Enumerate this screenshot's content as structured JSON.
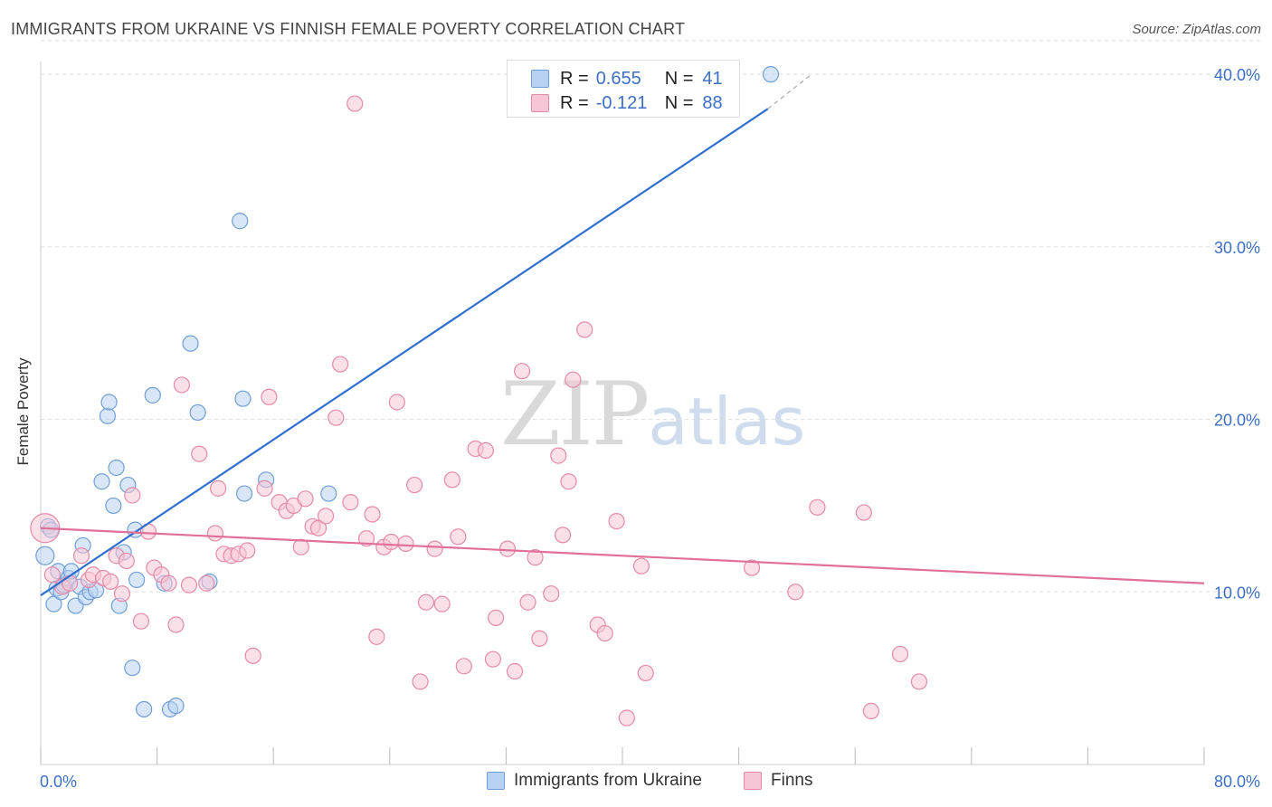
{
  "header": {
    "title": "IMMIGRANTS FROM UKRAINE VS FINNISH FEMALE POVERTY CORRELATION CHART",
    "source": "Source: ZipAtlas.com"
  },
  "watermark": {
    "zip": "ZIP",
    "atlas": "atlas"
  },
  "legend_top": {
    "rows": [
      {
        "r_label": "R =",
        "r_value": "0.655",
        "n_label": "N =",
        "n_value": "41"
      },
      {
        "r_label": "R =",
        "r_value": "-0.121",
        "n_label": "N =",
        "n_value": "88"
      }
    ]
  },
  "legend_bottom": {
    "series1": "Immigrants from Ukraine",
    "series2": "Finns"
  },
  "colors": {
    "blue_fill": "#b8d1f3",
    "blue_stroke": "#6f9fd8",
    "blue_line": "#2f6fd0",
    "pink_fill": "#f7c6d6",
    "pink_stroke": "#e58aa8",
    "pink_line": "#e0709a",
    "grid": "#dddddd",
    "axis_tick": "#3c6fc4"
  },
  "chart_data": {
    "type": "scatter",
    "title": "IMMIGRANTS FROM UKRAINE VS FINNISH FEMALE POVERTY CORRELATION CHART",
    "xlabel": "",
    "ylabel": "Female Poverty",
    "xlim": [
      0,
      80
    ],
    "ylim": [
      0,
      42
    ],
    "x_tick_labels": [
      "0.0%",
      "80.0%"
    ],
    "y_ticks": [
      10,
      20,
      30,
      40
    ],
    "y_tick_labels": [
      "10.0%",
      "20.0%",
      "30.0%",
      "40.0%"
    ],
    "grid": true,
    "legend_position": "top-center",
    "series": [
      {
        "name": "Immigrants from Ukraine",
        "color": "#6f9fd8",
        "r": 0.655,
        "n": 41,
        "trend": {
          "x": [
            0,
            50
          ],
          "y": [
            9.8,
            38.0
          ],
          "dashed_to": [
            53,
            40.0
          ]
        },
        "points": [
          [
            0.3,
            12.1
          ],
          [
            0.5,
            13.8
          ],
          [
            0.7,
            13.6
          ],
          [
            0.9,
            9.3
          ],
          [
            1.1,
            10.2
          ],
          [
            1.2,
            11.2
          ],
          [
            1.4,
            10.0
          ],
          [
            1.6,
            10.4
          ],
          [
            1.9,
            10.8
          ],
          [
            2.1,
            11.2
          ],
          [
            2.4,
            9.2
          ],
          [
            2.7,
            10.3
          ],
          [
            2.9,
            12.7
          ],
          [
            3.1,
            9.7
          ],
          [
            3.4,
            10.0
          ],
          [
            3.8,
            10.1
          ],
          [
            4.2,
            16.4
          ],
          [
            4.6,
            20.2
          ],
          [
            4.7,
            21.0
          ],
          [
            5.0,
            15.0
          ],
          [
            5.2,
            17.2
          ],
          [
            5.4,
            9.2
          ],
          [
            5.7,
            12.3
          ],
          [
            6.0,
            16.2
          ],
          [
            6.3,
            5.6
          ],
          [
            6.5,
            13.6
          ],
          [
            6.6,
            10.7
          ],
          [
            7.1,
            3.2
          ],
          [
            7.7,
            21.4
          ],
          [
            8.5,
            10.5
          ],
          [
            8.9,
            3.2
          ],
          [
            9.3,
            3.4
          ],
          [
            10.3,
            24.4
          ],
          [
            10.8,
            20.4
          ],
          [
            11.6,
            10.6
          ],
          [
            13.7,
            31.5
          ],
          [
            13.9,
            21.2
          ],
          [
            14.0,
            15.7
          ],
          [
            15.5,
            16.5
          ],
          [
            19.8,
            15.7
          ],
          [
            50.2,
            40.0
          ]
        ]
      },
      {
        "name": "Finns",
        "color": "#e58aa8",
        "r": -0.121,
        "n": 88,
        "trend": {
          "x": [
            0,
            80
          ],
          "y": [
            13.7,
            10.5
          ]
        },
        "points": [
          [
            0.3,
            13.7
          ],
          [
            0.8,
            11.0
          ],
          [
            1.5,
            10.3
          ],
          [
            2.0,
            10.5
          ],
          [
            2.8,
            12.1
          ],
          [
            3.3,
            10.7
          ],
          [
            3.6,
            11.0
          ],
          [
            4.3,
            10.8
          ],
          [
            4.8,
            10.6
          ],
          [
            5.2,
            12.1
          ],
          [
            5.6,
            9.9
          ],
          [
            5.9,
            11.8
          ],
          [
            6.3,
            15.6
          ],
          [
            6.9,
            8.3
          ],
          [
            7.4,
            13.5
          ],
          [
            7.8,
            11.4
          ],
          [
            8.3,
            11.0
          ],
          [
            8.8,
            10.5
          ],
          [
            9.3,
            8.1
          ],
          [
            9.7,
            22.0
          ],
          [
            10.2,
            10.4
          ],
          [
            10.9,
            18.0
          ],
          [
            11.4,
            10.5
          ],
          [
            12.0,
            13.4
          ],
          [
            12.2,
            16.0
          ],
          [
            12.6,
            12.2
          ],
          [
            13.1,
            12.1
          ],
          [
            13.6,
            12.2
          ],
          [
            14.2,
            12.4
          ],
          [
            14.6,
            6.3
          ],
          [
            15.4,
            16.0
          ],
          [
            15.7,
            21.3
          ],
          [
            16.4,
            15.2
          ],
          [
            16.9,
            14.7
          ],
          [
            17.4,
            15.0
          ],
          [
            17.9,
            12.6
          ],
          [
            18.2,
            15.4
          ],
          [
            18.7,
            13.8
          ],
          [
            19.1,
            13.7
          ],
          [
            19.6,
            14.4
          ],
          [
            20.3,
            20.1
          ],
          [
            20.6,
            23.2
          ],
          [
            21.3,
            15.2
          ],
          [
            21.6,
            38.3
          ],
          [
            22.4,
            13.1
          ],
          [
            22.8,
            14.5
          ],
          [
            23.1,
            7.4
          ],
          [
            23.6,
            12.6
          ],
          [
            24.1,
            12.9
          ],
          [
            24.5,
            21.0
          ],
          [
            25.1,
            12.8
          ],
          [
            25.7,
            16.2
          ],
          [
            26.1,
            4.8
          ],
          [
            26.5,
            9.4
          ],
          [
            27.1,
            12.5
          ],
          [
            27.6,
            9.3
          ],
          [
            28.3,
            16.5
          ],
          [
            28.7,
            13.2
          ],
          [
            29.1,
            5.7
          ],
          [
            29.9,
            18.3
          ],
          [
            30.6,
            18.2
          ],
          [
            31.1,
            6.1
          ],
          [
            31.3,
            8.5
          ],
          [
            32.1,
            12.5
          ],
          [
            32.6,
            5.4
          ],
          [
            33.1,
            22.8
          ],
          [
            33.5,
            9.4
          ],
          [
            34.0,
            12.0
          ],
          [
            34.3,
            7.3
          ],
          [
            35.1,
            9.9
          ],
          [
            35.6,
            17.9
          ],
          [
            35.9,
            13.3
          ],
          [
            36.3,
            16.4
          ],
          [
            36.6,
            22.3
          ],
          [
            37.4,
            25.2
          ],
          [
            38.3,
            8.1
          ],
          [
            38.8,
            7.6
          ],
          [
            39.6,
            14.1
          ],
          [
            40.3,
            2.7
          ],
          [
            41.3,
            11.5
          ],
          [
            41.6,
            5.3
          ],
          [
            48.9,
            11.4
          ],
          [
            51.9,
            10.0
          ],
          [
            53.4,
            14.9
          ],
          [
            56.6,
            14.6
          ],
          [
            57.1,
            3.1
          ],
          [
            59.1,
            6.4
          ],
          [
            60.4,
            4.8
          ]
        ]
      }
    ]
  }
}
